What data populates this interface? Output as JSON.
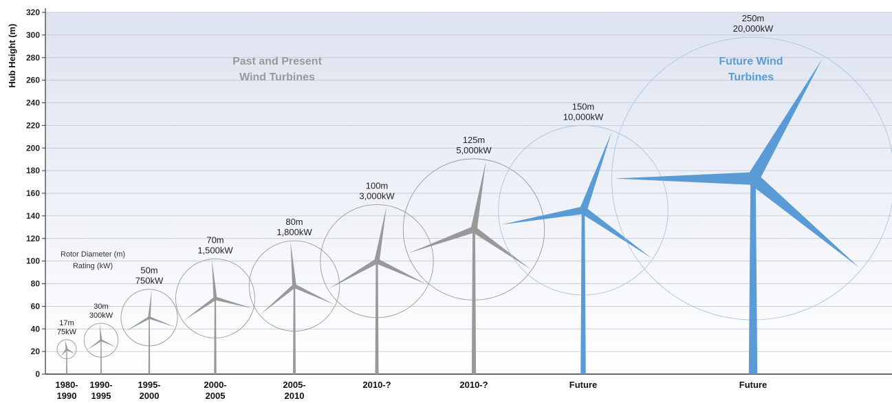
{
  "chart_data": {
    "type": "scatter",
    "title": "",
    "xlabel": "",
    "ylabel": "Hub Height (m)",
    "ylim": [
      0,
      320
    ],
    "yticks": [
      0,
      20,
      40,
      60,
      80,
      100,
      120,
      140,
      160,
      180,
      200,
      220,
      240,
      260,
      280,
      300,
      320
    ],
    "grid": true,
    "legend_note": [
      "Rotor Diameter (m)",
      "Rating (kW)"
    ],
    "groups": [
      {
        "label": [
          "Past and Present",
          "Wind Turbines"
        ],
        "color": "#999999"
      },
      {
        "label": [
          "Future Wind",
          "Turbines"
        ],
        "color": "#5b9bd5"
      }
    ],
    "turbines": [
      {
        "period": [
          "1980-",
          "1990"
        ],
        "diameter": "17m",
        "rating": "75kW",
        "hub_height": 22,
        "rotor_diameter": 17,
        "group": "past"
      },
      {
        "period": [
          "1990-",
          "1995"
        ],
        "diameter": "30m",
        "rating": "300kW",
        "hub_height": 30,
        "rotor_diameter": 30,
        "group": "past"
      },
      {
        "period": [
          "1995-",
          "2000"
        ],
        "diameter": "50m",
        "rating": "750kW",
        "hub_height": 50,
        "rotor_diameter": 50,
        "group": "past"
      },
      {
        "period": [
          "2000-",
          "2005"
        ],
        "diameter": "70m",
        "rating": "1,500kW",
        "hub_height": 67,
        "rotor_diameter": 70,
        "group": "past"
      },
      {
        "period": [
          "2005-",
          "2010"
        ],
        "diameter": "80m",
        "rating": "1,800kW",
        "hub_height": 78,
        "rotor_diameter": 80,
        "group": "past"
      },
      {
        "period": [
          "2010-?"
        ],
        "diameter": "100m",
        "rating": "3,000kW",
        "hub_height": 100,
        "rotor_diameter": 100,
        "group": "past"
      },
      {
        "period": [
          "2010-?"
        ],
        "diameter": "125m",
        "rating": "5,000kW",
        "hub_height": 128,
        "rotor_diameter": 125,
        "group": "past"
      },
      {
        "period": [
          "Future"
        ],
        "diameter": "150m",
        "rating": "10,000kW",
        "hub_height": 145,
        "rotor_diameter": 150,
        "group": "future"
      },
      {
        "period": [
          "Future"
        ],
        "diameter": "250m",
        "rating": "20,000kW",
        "hub_height": 173,
        "rotor_diameter": 250,
        "group": "future"
      }
    ]
  }
}
